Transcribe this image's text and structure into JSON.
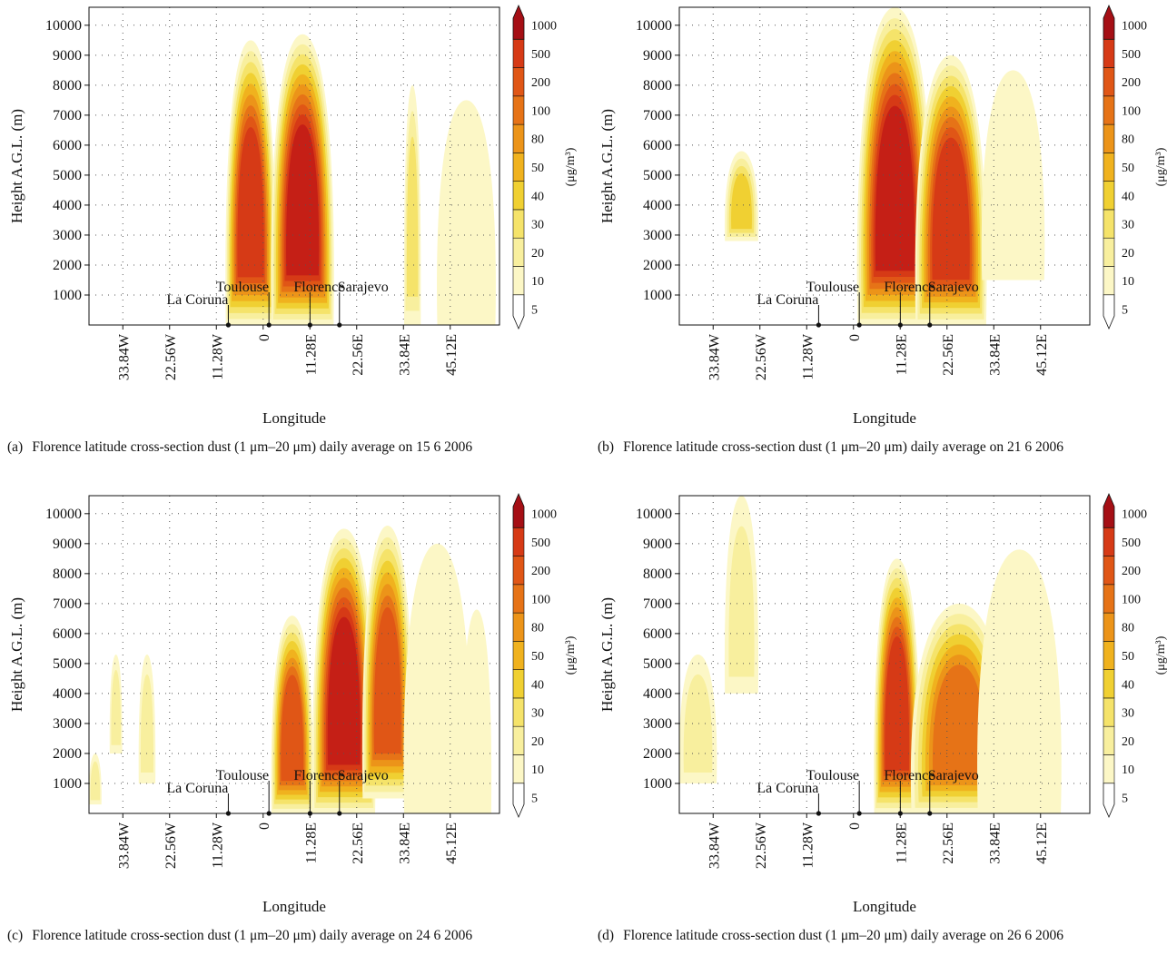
{
  "colors": {
    "scale": [
      "#fcf7c6",
      "#f8ef9e",
      "#f5e36a",
      "#f0d032",
      "#f0b21e",
      "#ec9419",
      "#e67317",
      "#e05616",
      "#d63a16",
      "#c51f16",
      "#a50f15"
    ]
  },
  "chart_data": [
    {
      "type": "heatmap",
      "label": "(a)",
      "caption": "Florence latitude cross-section dust (1 μm–20 μm) daily average on 15 6 2006",
      "title": "",
      "xlabel": "Longitude",
      "ylabel": "Height A.G.L. (m)",
      "x_unit": "degrees longitude",
      "xlim": [
        -42,
        57
      ],
      "ylim": [
        0,
        10600
      ],
      "x_ticks": [
        -33.84,
        -22.56,
        -11.28,
        0,
        11.28,
        22.56,
        33.84,
        45.12
      ],
      "x_tick_labels": [
        "33.84W",
        "22.56W",
        "11.28W",
        "0",
        "11.28E",
        "22.56E",
        "33.84E",
        "45.12E"
      ],
      "y_ticks": [
        1000,
        2000,
        3000,
        4000,
        5000,
        6000,
        7000,
        8000,
        9000,
        10000
      ],
      "y_tick_labels": [
        "1000",
        "2000",
        "3000",
        "4000",
        "5000",
        "6000",
        "7000",
        "8000",
        "9000",
        "10000"
      ],
      "grid": true,
      "colorbar_levels": [
        "5",
        "10",
        "20",
        "30",
        "40",
        "50",
        "80",
        "100",
        "200",
        "500",
        "1000"
      ],
      "colorbar_unit": "(μg/m³)",
      "cities": [
        {
          "name": "La Coruna",
          "lon": -8.4
        },
        {
          "name": "Toulouse",
          "lon": 1.4
        },
        {
          "name": "Florence",
          "lon": 11.3
        },
        {
          "name": "Sarajevo",
          "lon": 18.4
        }
      ],
      "plumes": [
        {
          "x0": -9,
          "x1": 3,
          "top": 9500,
          "bottom": 0,
          "peak": 8
        },
        {
          "x0": 2,
          "x1": 17,
          "top": 9700,
          "bottom": 0,
          "peak": 9
        },
        {
          "x0": 34,
          "x1": 38,
          "top": 8000,
          "bottom": 0,
          "peak": 2
        },
        {
          "x0": 42,
          "x1": 56,
          "top": 7500,
          "bottom": 0,
          "peak": 0
        }
      ]
    },
    {
      "type": "heatmap",
      "label": "(b)",
      "caption": "Florence latitude cross-section dust (1 μm–20 μm) daily average on 21 6 2006",
      "title": "",
      "xlabel": "Longitude",
      "ylabel": "Height A.G.L. (m)",
      "x_unit": "degrees longitude",
      "xlim": [
        -42,
        57
      ],
      "ylim": [
        0,
        10600
      ],
      "x_ticks": [
        -33.84,
        -22.56,
        -11.28,
        0,
        11.28,
        22.56,
        33.84,
        45.12
      ],
      "x_tick_labels": [
        "33.84W",
        "22.56W",
        "11.28W",
        "0",
        "11.28E",
        "22.56E",
        "33.84E",
        "45.12E"
      ],
      "y_ticks": [
        1000,
        2000,
        3000,
        4000,
        5000,
        6000,
        7000,
        8000,
        9000,
        10000
      ],
      "y_tick_labels": [
        "1000",
        "2000",
        "3000",
        "4000",
        "5000",
        "6000",
        "7000",
        "8000",
        "9000",
        "10000"
      ],
      "grid": true,
      "colorbar_levels": [
        "5",
        "10",
        "20",
        "30",
        "40",
        "50",
        "80",
        "100",
        "200",
        "500",
        "1000"
      ],
      "colorbar_unit": "(μg/m³)",
      "cities": [
        {
          "name": "La Coruna",
          "lon": -8.4
        },
        {
          "name": "Toulouse",
          "lon": 1.4
        },
        {
          "name": "Florence",
          "lon": 11.3
        },
        {
          "name": "Sarajevo",
          "lon": 18.4
        }
      ],
      "plumes": [
        {
          "x0": -31,
          "x1": -23,
          "top": 5800,
          "bottom": 2800,
          "peak": 3
        },
        {
          "x0": 1,
          "x1": 19,
          "top": 10600,
          "bottom": 0,
          "peak": 9
        },
        {
          "x0": 15,
          "x1": 32,
          "top": 9000,
          "bottom": 0,
          "peak": 8
        },
        {
          "x0": 31,
          "x1": 46,
          "top": 8500,
          "bottom": 1500,
          "peak": 0
        }
      ]
    },
    {
      "type": "heatmap",
      "label": "(c)",
      "caption": "Florence latitude cross-section dust (1 μm–20 μm) daily average on 24 6 2006",
      "title": "",
      "xlabel": "Longitude",
      "ylabel": "Height A.G.L. (m)",
      "x_unit": "degrees longitude",
      "xlim": [
        -42,
        57
      ],
      "ylim": [
        0,
        10600
      ],
      "x_ticks": [
        -33.84,
        -22.56,
        -11.28,
        0,
        11.28,
        22.56,
        33.84,
        45.12
      ],
      "x_tick_labels": [
        "33.84W",
        "22.56W",
        "11.28W",
        "0",
        "11.28E",
        "22.56E",
        "33.84E",
        "45.12E"
      ],
      "y_ticks": [
        1000,
        2000,
        3000,
        4000,
        5000,
        6000,
        7000,
        8000,
        9000,
        10000
      ],
      "y_tick_labels": [
        "1000",
        "2000",
        "3000",
        "4000",
        "5000",
        "6000",
        "7000",
        "8000",
        "9000",
        "10000"
      ],
      "grid": true,
      "colorbar_levels": [
        "5",
        "10",
        "20",
        "30",
        "40",
        "50",
        "80",
        "100",
        "200",
        "500",
        "1000"
      ],
      "colorbar_unit": "(μg/m³)",
      "cities": [
        {
          "name": "La Coruna",
          "lon": -8.4
        },
        {
          "name": "Toulouse",
          "lon": 1.4
        },
        {
          "name": "Florence",
          "lon": 11.3
        },
        {
          "name": "Sarajevo",
          "lon": 18.4
        }
      ],
      "plumes": [
        {
          "x0": -42,
          "x1": -39,
          "top": 2000,
          "bottom": 300,
          "peak": 1
        },
        {
          "x0": -37,
          "x1": -34,
          "top": 5300,
          "bottom": 2000,
          "peak": 1
        },
        {
          "x0": -30,
          "x1": -26,
          "top": 5300,
          "bottom": 1000,
          "peak": 1
        },
        {
          "x0": 2,
          "x1": 12,
          "top": 6600,
          "bottom": 0,
          "peak": 7
        },
        {
          "x0": 12,
          "x1": 27,
          "top": 9500,
          "bottom": 0,
          "peak": 9
        },
        {
          "x0": 24,
          "x1": 36,
          "top": 9600,
          "bottom": 500,
          "peak": 7
        },
        {
          "x0": 34,
          "x1": 50,
          "top": 9000,
          "bottom": 0,
          "peak": 0
        },
        {
          "x0": 48,
          "x1": 55,
          "top": 6800,
          "bottom": 0,
          "peak": 0
        }
      ]
    },
    {
      "type": "heatmap",
      "label": "(d)",
      "caption": "Florence latitude cross-section dust (1 μm–20 μm) daily average on 26 6 2006",
      "title": "",
      "xlabel": "Longitude",
      "ylabel": "Height A.G.L. (m)",
      "x_unit": "degrees longitude",
      "xlim": [
        -42,
        57
      ],
      "ylim": [
        0,
        10600
      ],
      "x_ticks": [
        -33.84,
        -22.56,
        -11.28,
        0,
        11.28,
        22.56,
        33.84,
        45.12
      ],
      "x_tick_labels": [
        "33.84W",
        "22.56W",
        "11.28W",
        "0",
        "11.28E",
        "22.56E",
        "33.84E",
        "45.12E"
      ],
      "y_ticks": [
        1000,
        2000,
        3000,
        4000,
        5000,
        6000,
        7000,
        8000,
        9000,
        10000
      ],
      "y_tick_labels": [
        "1000",
        "2000",
        "3000",
        "4000",
        "5000",
        "6000",
        "7000",
        "8000",
        "9000",
        "10000"
      ],
      "grid": true,
      "colorbar_levels": [
        "5",
        "10",
        "20",
        "30",
        "40",
        "50",
        "80",
        "100",
        "200",
        "500",
        "1000"
      ],
      "colorbar_unit": "(μg/m³)",
      "cities": [
        {
          "name": "La Coruna",
          "lon": -8.4
        },
        {
          "name": "Toulouse",
          "lon": 1.4
        },
        {
          "name": "Florence",
          "lon": 11.3
        },
        {
          "name": "Sarajevo",
          "lon": 18.4
        }
      ],
      "plumes": [
        {
          "x0": -42,
          "x1": -33,
          "top": 5300,
          "bottom": 1000,
          "peak": 1
        },
        {
          "x0": -31,
          "x1": -23,
          "top": 10600,
          "bottom": 4000,
          "peak": 1
        },
        {
          "x0": 5,
          "x1": 16,
          "top": 8500,
          "bottom": 0,
          "peak": 8
        },
        {
          "x0": 14,
          "x1": 37,
          "top": 7000,
          "bottom": 0,
          "peak": 6
        },
        {
          "x0": 30,
          "x1": 50,
          "top": 8800,
          "bottom": 0,
          "peak": 0
        }
      ]
    }
  ]
}
